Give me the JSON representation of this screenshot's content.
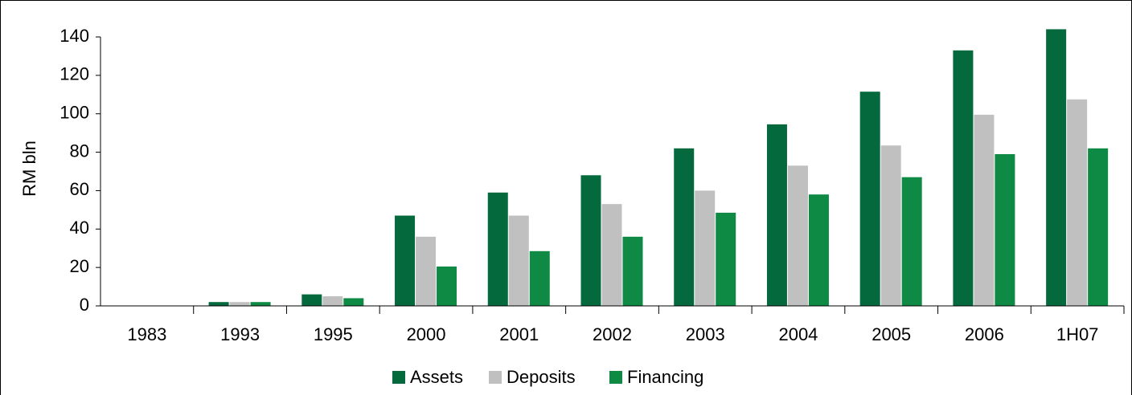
{
  "chart_data": {
    "type": "bar",
    "y_label": "RM bln",
    "categories": [
      "1983",
      "1993",
      "1995",
      "2000",
      "2001",
      "2002",
      "2003",
      "2004",
      "2005",
      "2006",
      "1H07"
    ],
    "series": [
      {
        "name": "Assets",
        "color": "#046a3e",
        "values": [
          0,
          2,
          6,
          47,
          59,
          68,
          82,
          94.5,
          111.5,
          133,
          144
        ]
      },
      {
        "name": "Deposits",
        "color": "#c0c0c0",
        "values": [
          0,
          2,
          5,
          36,
          47,
          53,
          60,
          73,
          83.5,
          99.5,
          107.5
        ]
      },
      {
        "name": "Financing",
        "color": "#0f8a45",
        "values": [
          0,
          2,
          4,
          20.5,
          28.5,
          36,
          48.5,
          58,
          67,
          79,
          82
        ]
      }
    ],
    "ylim": [
      0,
      140
    ],
    "yticks": [
      0,
      20,
      40,
      60,
      80,
      100,
      120,
      140
    ],
    "legend": "bottom"
  }
}
